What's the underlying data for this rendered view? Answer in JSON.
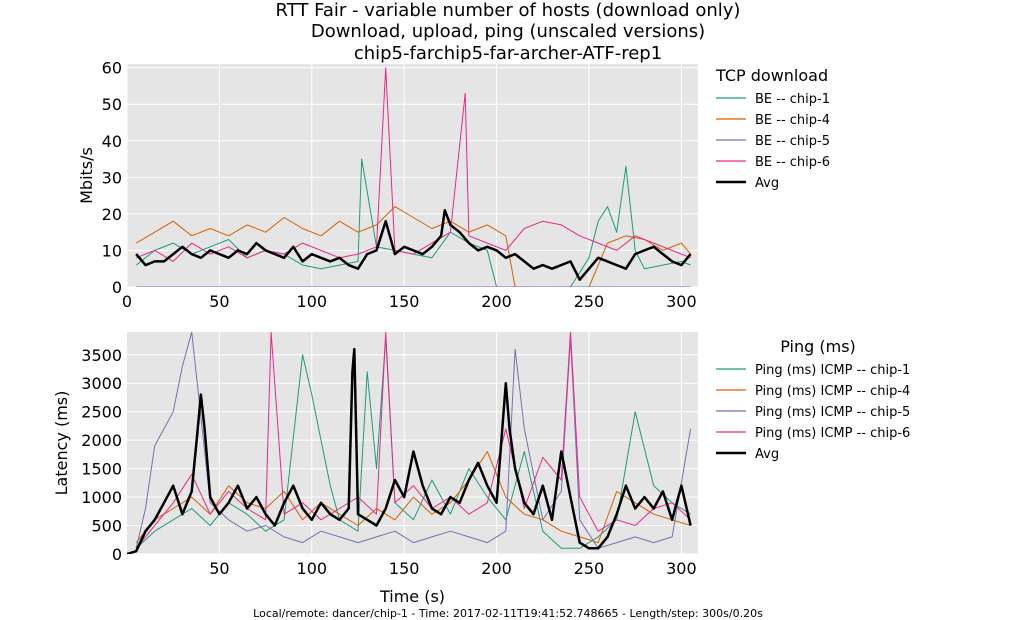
{
  "figure": {
    "title_lines": [
      "RTT Fair - variable number of hosts (download only)",
      "Download, upload, ping (unscaled versions)",
      "chip5-farchip5-far-archer-ATF-rep1"
    ],
    "footer": "Local/remote: dancer/chip-1 - Time: 2017-02-11T19:41:52.748665 - Length/step: 300s/0.20s"
  },
  "chart_data": [
    {
      "type": "line",
      "ylabel": "Mbits/s",
      "xlabel": "",
      "xlim": [
        0,
        309
      ],
      "ylim": [
        0,
        61
      ],
      "xticks": [
        0,
        50,
        100,
        150,
        200,
        250,
        300
      ],
      "yticks": [
        0,
        10,
        20,
        30,
        40,
        50,
        60
      ],
      "legend_title": "TCP download",
      "legend_position": "right",
      "grid": true,
      "series": [
        {
          "name": "BE -- chip-1",
          "color": "#1b9e77",
          "x": [
            5,
            15,
            25,
            35,
            45,
            55,
            65,
            75,
            85,
            95,
            105,
            115,
            125,
            127,
            135,
            145,
            155,
            165,
            175,
            185,
            195,
            200,
            210,
            220,
            230,
            240,
            250,
            255,
            260,
            265,
            270,
            275,
            280,
            290,
            300,
            305
          ],
          "y": [
            6,
            10,
            12,
            9,
            11,
            13,
            8,
            10,
            9,
            6,
            5,
            6,
            7,
            35,
            11,
            10,
            9,
            8,
            15,
            12,
            10,
            0,
            0,
            0,
            0,
            0,
            8,
            18,
            22,
            15,
            33,
            10,
            5,
            6,
            7,
            6
          ]
        },
        {
          "name": "BE -- chip-4",
          "color": "#d95f02",
          "x": [
            5,
            15,
            25,
            35,
            45,
            55,
            65,
            75,
            85,
            95,
            105,
            115,
            125,
            135,
            145,
            155,
            165,
            175,
            185,
            195,
            205,
            210,
            220,
            230,
            240,
            250,
            260,
            270,
            280,
            290,
            300,
            305
          ],
          "y": [
            12,
            15,
            18,
            14,
            16,
            14,
            17,
            15,
            19,
            16,
            14,
            18,
            15,
            17,
            22,
            19,
            16,
            18,
            15,
            17,
            14,
            0,
            0,
            0,
            0,
            0,
            12,
            14,
            13,
            10,
            12,
            9
          ]
        },
        {
          "name": "BE -- chip-5",
          "color": "#7570b3",
          "x": [
            5,
            15,
            25,
            35,
            45,
            55,
            65,
            75,
            85,
            95,
            105,
            115,
            125,
            135,
            145,
            155,
            165,
            175,
            185,
            195,
            205,
            215,
            225,
            235,
            245,
            255,
            265,
            275,
            285,
            295,
            305
          ],
          "y": [
            0,
            0,
            0,
            0,
            0,
            0,
            0,
            0,
            0,
            0,
            0,
            0,
            0,
            0,
            0,
            0,
            0,
            0,
            0,
            0,
            0,
            0,
            0,
            0,
            0,
            0,
            0,
            0,
            0,
            0,
            0
          ]
        },
        {
          "name": "BE -- chip-6",
          "color": "#e7298a",
          "x": [
            5,
            15,
            25,
            35,
            45,
            55,
            65,
            75,
            85,
            95,
            105,
            115,
            125,
            135,
            140,
            145,
            155,
            165,
            175,
            183,
            185,
            195,
            205,
            215,
            225,
            235,
            245,
            255,
            265,
            275,
            285,
            295,
            305
          ],
          "y": [
            8,
            10,
            7,
            12,
            9,
            11,
            8,
            10,
            9,
            12,
            10,
            8,
            9,
            11,
            60,
            10,
            9,
            12,
            15,
            53,
            14,
            12,
            10,
            16,
            18,
            17,
            14,
            12,
            10,
            14,
            12,
            10,
            8
          ]
        },
        {
          "name": "Avg",
          "color": "#000000",
          "x": [
            5,
            10,
            15,
            20,
            25,
            30,
            35,
            40,
            45,
            50,
            55,
            60,
            65,
            70,
            75,
            80,
            85,
            90,
            95,
            100,
            105,
            110,
            115,
            120,
            125,
            130,
            135,
            140,
            145,
            150,
            155,
            160,
            165,
            170,
            172,
            175,
            180,
            185,
            190,
            195,
            200,
            205,
            210,
            215,
            220,
            225,
            230,
            235,
            240,
            245,
            250,
            255,
            260,
            265,
            270,
            275,
            280,
            285,
            290,
            295,
            300,
            305
          ],
          "y": [
            9,
            6,
            7,
            7,
            9,
            11,
            9,
            8,
            10,
            9,
            8,
            10,
            9,
            12,
            10,
            9,
            8,
            11,
            7,
            9,
            8,
            7,
            8,
            6,
            5,
            9,
            10,
            18,
            9,
            11,
            10,
            9,
            11,
            14,
            21,
            17,
            15,
            12,
            10,
            11,
            10,
            8,
            9,
            7,
            5,
            6,
            5,
            6,
            7,
            2,
            5,
            8,
            7,
            6,
            5,
            9,
            10,
            11,
            9,
            7,
            6,
            9
          ]
        }
      ]
    },
    {
      "type": "line",
      "ylabel": "Latency (ms)",
      "xlabel": "Time (s)",
      "xlim": [
        0,
        309
      ],
      "ylim": [
        0,
        3900
      ],
      "xticks": [
        50,
        100,
        150,
        200,
        250,
        300
      ],
      "yticks": [
        0,
        500,
        1000,
        1500,
        2000,
        2500,
        3000,
        3500
      ],
      "legend_title": "Ping (ms)",
      "legend_position": "right",
      "grid": true,
      "series": [
        {
          "name": "Ping (ms) ICMP -- chip-1",
          "color": "#1b9e77",
          "x": [
            5,
            15,
            25,
            35,
            45,
            55,
            65,
            75,
            85,
            95,
            100,
            105,
            110,
            115,
            125,
            130,
            135,
            140,
            145,
            155,
            165,
            175,
            185,
            195,
            205,
            215,
            225,
            235,
            245,
            255,
            265,
            275,
            285,
            295,
            305
          ],
          "y": [
            100,
            400,
            600,
            800,
            500,
            900,
            700,
            400,
            600,
            3500,
            2800,
            2000,
            1200,
            600,
            400,
            3200,
            1500,
            3800,
            900,
            600,
            1300,
            700,
            1500,
            1000,
            600,
            1800,
            400,
            100,
            100,
            300,
            600,
            2500,
            1200,
            900,
            700
          ]
        },
        {
          "name": "Ping (ms) ICMP -- chip-4",
          "color": "#d95f02",
          "x": [
            5,
            15,
            25,
            35,
            45,
            55,
            65,
            75,
            85,
            95,
            105,
            115,
            125,
            135,
            145,
            155,
            165,
            175,
            185,
            195,
            205,
            215,
            225,
            235,
            245,
            255,
            265,
            275,
            285,
            295,
            305
          ],
          "y": [
            200,
            600,
            800,
            1000,
            700,
            1200,
            900,
            800,
            1100,
            600,
            900,
            700,
            500,
            800,
            600,
            1000,
            700,
            900,
            1300,
            1800,
            1000,
            700,
            600,
            400,
            300,
            200,
            1100,
            900,
            700,
            600,
            500
          ]
        },
        {
          "name": "Ping (ms) ICMP -- chip-5",
          "color": "#7570b3",
          "x": [
            5,
            10,
            15,
            20,
            25,
            30,
            35,
            45,
            55,
            65,
            75,
            85,
            95,
            105,
            115,
            125,
            135,
            145,
            155,
            165,
            175,
            185,
            195,
            205,
            210,
            215,
            225,
            235,
            240,
            245,
            255,
            265,
            275,
            285,
            295,
            305
          ],
          "y": [
            100,
            800,
            1900,
            2200,
            2500,
            3300,
            3900,
            900,
            600,
            400,
            500,
            300,
            200,
            400,
            300,
            200,
            300,
            400,
            200,
            300,
            400,
            300,
            200,
            400,
            3600,
            2200,
            600,
            1100,
            3800,
            600,
            100,
            200,
            300,
            200,
            300,
            2200
          ]
        },
        {
          "name": "Ping (ms) ICMP -- chip-6",
          "color": "#e7298a",
          "x": [
            5,
            15,
            25,
            35,
            45,
            55,
            65,
            75,
            78,
            85,
            95,
            105,
            115,
            125,
            135,
            140,
            145,
            155,
            165,
            175,
            185,
            195,
            205,
            215,
            225,
            235,
            240,
            245,
            255,
            265,
            275,
            285,
            295,
            305
          ],
          "y": [
            100,
            500,
            900,
            1400,
            700,
            1100,
            800,
            600,
            3900,
            700,
            900,
            600,
            800,
            1000,
            700,
            3900,
            900,
            1200,
            800,
            1000,
            700,
            900,
            2200,
            800,
            1700,
            1300,
            3900,
            1000,
            400,
            600,
            500,
            800,
            900,
            600
          ]
        },
        {
          "name": "Avg",
          "color": "#000000",
          "x": [
            0,
            5,
            10,
            15,
            20,
            25,
            30,
            35,
            38,
            40,
            42,
            45,
            50,
            55,
            60,
            65,
            70,
            75,
            80,
            85,
            90,
            95,
            100,
            105,
            110,
            115,
            120,
            122,
            123,
            125,
            130,
            135,
            140,
            145,
            150,
            155,
            160,
            165,
            170,
            175,
            180,
            185,
            190,
            195,
            200,
            205,
            207,
            210,
            215,
            220,
            225,
            230,
            235,
            240,
            245,
            250,
            255,
            260,
            265,
            270,
            275,
            280,
            285,
            290,
            295,
            300,
            305
          ],
          "y": [
            0,
            50,
            400,
            600,
            900,
            1200,
            700,
            1100,
            2100,
            2800,
            2200,
            1000,
            700,
            900,
            1200,
            800,
            1000,
            700,
            500,
            900,
            1200,
            800,
            600,
            900,
            700,
            600,
            800,
            3200,
            3600,
            700,
            600,
            500,
            800,
            1300,
            1000,
            1800,
            1200,
            800,
            700,
            1000,
            900,
            1300,
            1600,
            1200,
            900,
            3000,
            2200,
            1500,
            900,
            700,
            1200,
            600,
            1800,
            1000,
            200,
            100,
            100,
            300,
            700,
            1200,
            800,
            1000,
            800,
            1100,
            600,
            1200,
            500
          ]
        }
      ]
    }
  ]
}
